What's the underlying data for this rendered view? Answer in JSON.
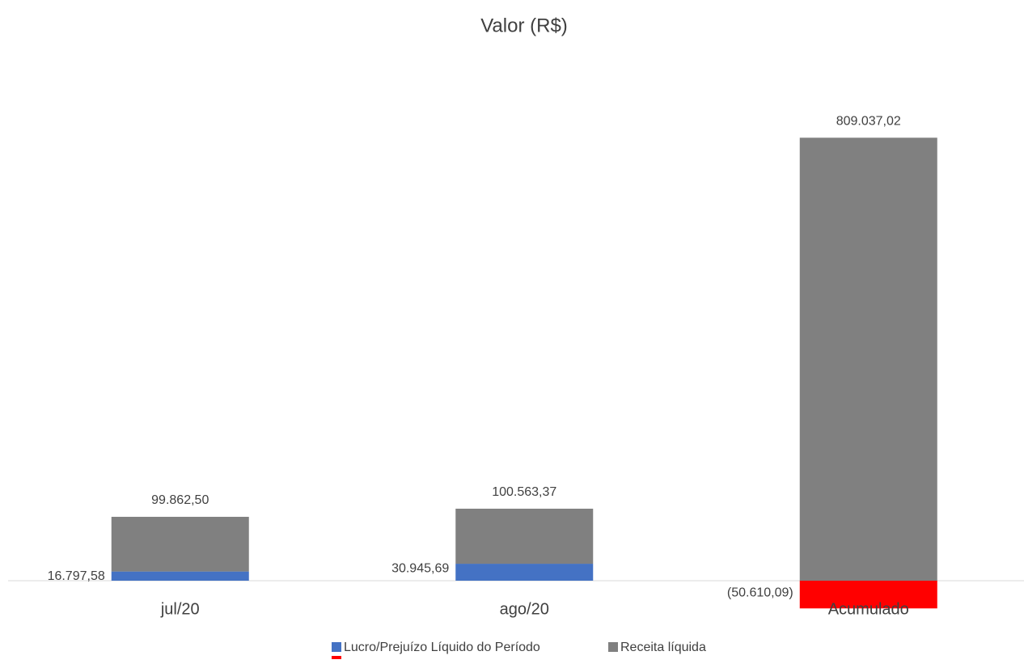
{
  "chart_data": {
    "type": "stacked_bar",
    "title": "Valor (R$)",
    "categories": [
      "jul/20",
      "ago/20",
      "Acumulado"
    ],
    "series": [
      {
        "name": "Lucro/Prejuízo Líquido do Período",
        "color": "#4472c4",
        "invert_color": "#ff0000",
        "values": [
          16797.58,
          30945.69,
          -50610.09
        ],
        "value_labels": [
          "16.797,58",
          "30.945,69",
          "(50.610,09)"
        ]
      },
      {
        "name": "Receita líquida",
        "color": "#808080",
        "values": [
          99862.5,
          100563.37,
          809037.02
        ],
        "value_labels": [
          "99.862,50",
          "100.563,37",
          "809.037,02"
        ]
      }
    ],
    "ylim": [
      -100000,
      900000
    ],
    "legend": "bottom"
  }
}
